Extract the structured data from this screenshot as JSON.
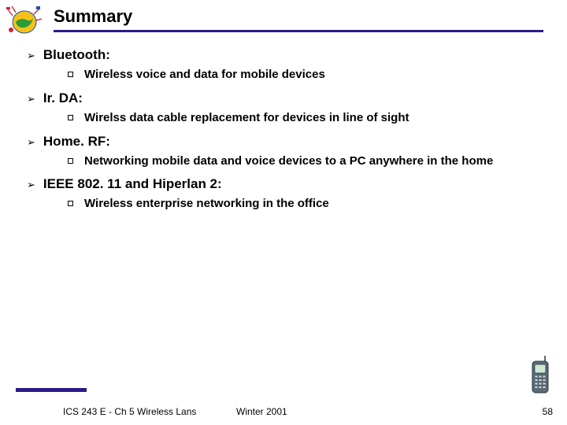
{
  "colors": {
    "accent": "#2c1a8a",
    "text": "#000000",
    "bg": "#ffffff",
    "logo_core": "#f6c21a",
    "logo_land": "#2a9d3a",
    "logo_edge": "#1e4fb0",
    "phone_body": "#5a6b7a",
    "phone_screen": "#cfe7d4",
    "phone_btn": "#d0d4d8"
  },
  "title": "Summary",
  "bullets": [
    {
      "label": "Bluetooth:",
      "subs": [
        "Wireless voice and data for mobile devices"
      ]
    },
    {
      "label": "Ir. DA:",
      "subs": [
        "Wirelss data cable replacement for devices in line of sight"
      ]
    },
    {
      "label": "Home. RF:",
      "subs": [
        "Networking mobile data and voice devices to a PC anywhere in the home"
      ]
    },
    {
      "label": "IEEE 802. 11 and Hiperlan 2:",
      "subs": [
        "Wireless enterprise networking in the office"
      ]
    }
  ],
  "footer": {
    "course": "ICS 243 E - Ch 5 Wireless Lans",
    "term": "Winter 2001",
    "page": "58"
  }
}
